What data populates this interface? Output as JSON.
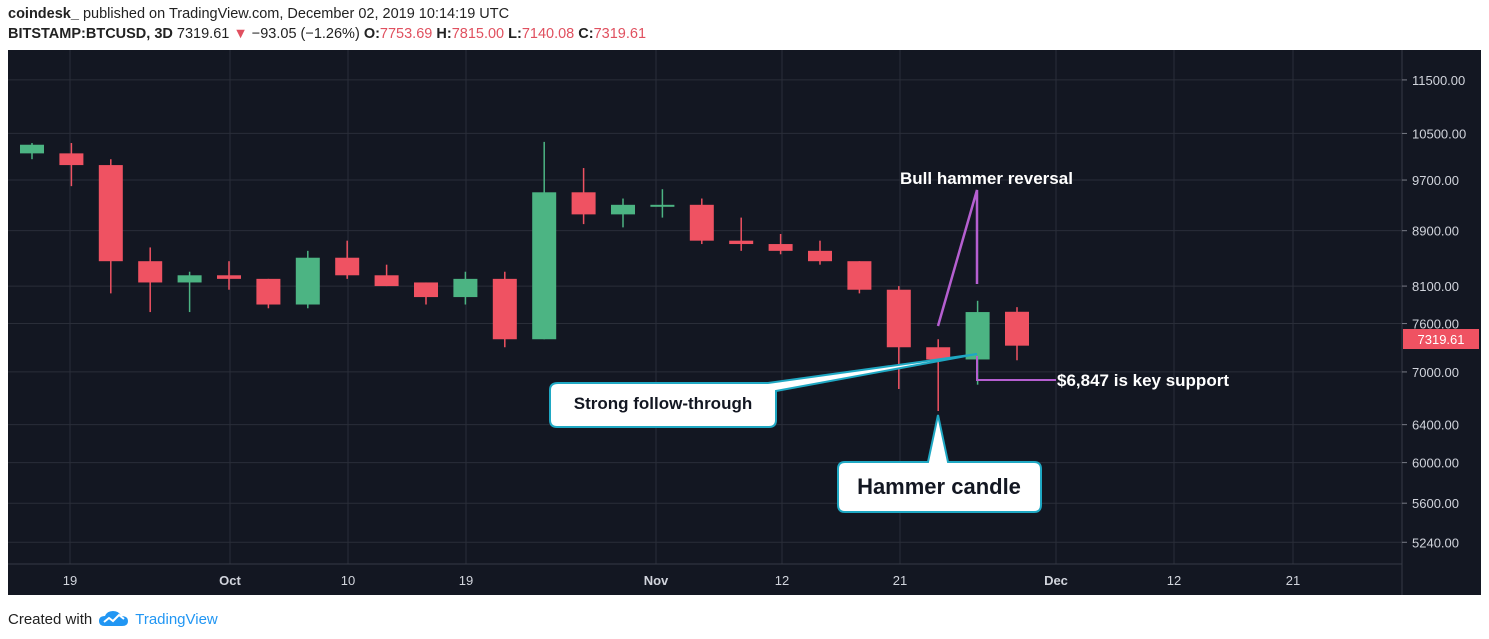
{
  "header": {
    "author": "coindesk_",
    "published": "published on TradingView.com, December 02, 2019 10:14:19 UTC",
    "symbol": "BITSTAMP:BTCUSD, 3D",
    "last": "7319.61",
    "arrow": "▼",
    "change": "−93.05 (−1.26%)",
    "open_label": "O:",
    "open": "7753.69",
    "high_label": "H:",
    "high": "7815.00",
    "low_label": "L:",
    "low": "7140.08",
    "close_label": "C:",
    "close": "7319.61"
  },
  "footer": {
    "created_with": "Created with",
    "brand": "TradingView"
  },
  "colors": {
    "bull": "#4cb483",
    "bear": "#ef5262",
    "bg": "#131722",
    "grid": "#2a2e39",
    "annotation_line": "#b55fd0",
    "callout_border": "#1fa8c3"
  },
  "chart_data": {
    "type": "candlestick",
    "y_scale": "log",
    "ylim": [
      5050,
      12100
    ],
    "y_ticks": [
      "11500.00",
      "10500.00",
      "9700.00",
      "8900.00",
      "8100.00",
      "7600.00",
      "7000.00",
      "6400.00",
      "6000.00",
      "5600.00",
      "5240.00"
    ],
    "x_ticks": [
      "19",
      "Oct",
      "10",
      "19",
      "Nov",
      "12",
      "21",
      "Dec",
      "12",
      "21"
    ],
    "last_price_label": "7319.61",
    "candles": [
      {
        "o": 10150,
        "h": 10330,
        "l": 10050,
        "c": 10300
      },
      {
        "o": 10150,
        "h": 10330,
        "l": 9600,
        "c": 9950
      },
      {
        "o": 9950,
        "h": 10050,
        "l": 8000,
        "c": 8450
      },
      {
        "o": 8450,
        "h": 8650,
        "l": 7750,
        "c": 8150
      },
      {
        "o": 8150,
        "h": 8300,
        "l": 7750,
        "c": 8250
      },
      {
        "o": 8250,
        "h": 8450,
        "l": 8050,
        "c": 8200
      },
      {
        "o": 8200,
        "h": 8200,
        "l": 7800,
        "c": 7850
      },
      {
        "o": 7850,
        "h": 8600,
        "l": 7800,
        "c": 8500
      },
      {
        "o": 8500,
        "h": 8750,
        "l": 8200,
        "c": 8250
      },
      {
        "o": 8250,
        "h": 8400,
        "l": 8100,
        "c": 8100
      },
      {
        "o": 8150,
        "h": 8150,
        "l": 7850,
        "c": 7950
      },
      {
        "o": 7950,
        "h": 8300,
        "l": 7850,
        "c": 8200
      },
      {
        "o": 8200,
        "h": 8300,
        "l": 7300,
        "c": 7400
      },
      {
        "o": 7400,
        "h": 10350,
        "l": 7400,
        "c": 9500
      },
      {
        "o": 9500,
        "h": 9900,
        "l": 9000,
        "c": 9150
      },
      {
        "o": 9150,
        "h": 9400,
        "l": 8950,
        "c": 9300
      },
      {
        "o": 9300,
        "h": 9550,
        "l": 9100,
        "c": 9300
      },
      {
        "o": 9300,
        "h": 9400,
        "l": 8700,
        "c": 8750
      },
      {
        "o": 8750,
        "h": 9100,
        "l": 8600,
        "c": 8700
      },
      {
        "o": 8700,
        "h": 8850,
        "l": 8550,
        "c": 8600
      },
      {
        "o": 8600,
        "h": 8750,
        "l": 8400,
        "c": 8450
      },
      {
        "o": 8450,
        "h": 8450,
        "l": 8000,
        "c": 8050
      },
      {
        "o": 8050,
        "h": 8100,
        "l": 6800,
        "c": 7300
      },
      {
        "o": 7300,
        "h": 7400,
        "l": 6550,
        "c": 7150
      },
      {
        "o": 7150,
        "h": 7900,
        "l": 6850,
        "c": 7750
      },
      {
        "o": 7753.69,
        "h": 7815,
        "l": 7140.08,
        "c": 7319.61
      }
    ],
    "annotations": [
      {
        "text": "Bull hammer reversal"
      },
      {
        "text": "$6,847 is key support"
      },
      {
        "text": "Strong follow-through"
      },
      {
        "text": "Hammer candle"
      }
    ]
  }
}
